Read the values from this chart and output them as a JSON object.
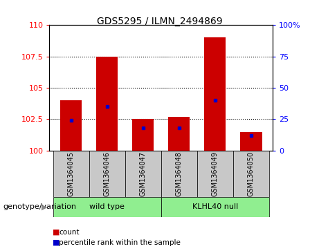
{
  "title": "GDS5295 / ILMN_2494869",
  "samples": [
    "GSM1364045",
    "GSM1364046",
    "GSM1364047",
    "GSM1364048",
    "GSM1364049",
    "GSM1364050"
  ],
  "count_values": [
    104.0,
    107.5,
    102.5,
    102.7,
    109.0,
    101.5
  ],
  "percentile_values": [
    24,
    35,
    18,
    18,
    40,
    12
  ],
  "ylim_left": [
    100,
    110
  ],
  "ylim_right": [
    0,
    100
  ],
  "yticks_left": [
    100,
    102.5,
    105,
    107.5,
    110
  ],
  "yticks_right": [
    0,
    25,
    50,
    75,
    100
  ],
  "yticklabels_right": [
    "0",
    "25",
    "50",
    "75",
    "100%"
  ],
  "bar_color": "#cc0000",
  "marker_color": "#0000cc",
  "bar_base": 100,
  "groups": [
    {
      "label": "wild type",
      "indices": [
        0,
        1,
        2
      ],
      "color": "#90ee90"
    },
    {
      "label": "KLHL40 null",
      "indices": [
        3,
        4,
        5
      ],
      "color": "#90ee90"
    }
  ],
  "group_label_prefix": "genotype/variation",
  "legend_items": [
    {
      "label": "count",
      "color": "#cc0000"
    },
    {
      "label": "percentile rank within the sample",
      "color": "#0000cc"
    }
  ],
  "tick_label_area_color": "#c8c8c8",
  "title_fontsize": 10,
  "bar_width": 0.6
}
